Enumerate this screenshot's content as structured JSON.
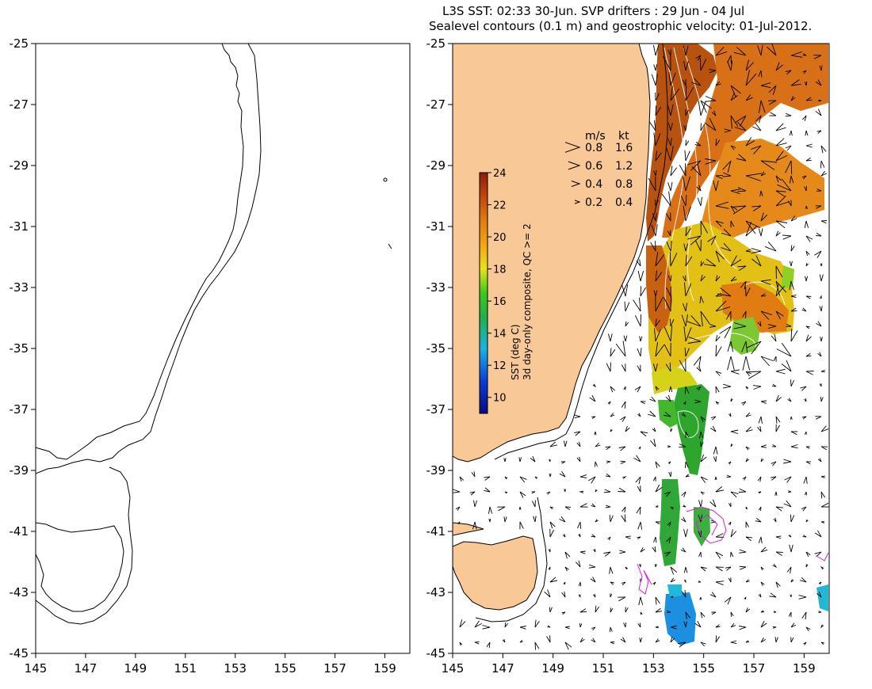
{
  "title": {
    "line1": "L3S SST: 02:33 30-Jun. SVP drifters : 29 Jun - 04 Jul",
    "line2": "Sealevel contours (0.1 m) and geostrophic velocity: 01-Jul-2012."
  },
  "axes": {
    "x_ticks": [
      "145",
      "147",
      "149",
      "151",
      "153",
      "155",
      "157",
      "159"
    ],
    "y_ticks": [
      "-25",
      "-27",
      "-29",
      "-31",
      "-33",
      "-35",
      "-37",
      "-39",
      "-41",
      "-43",
      "-45"
    ],
    "x_range": [
      145,
      160
    ],
    "y_range": [
      -45,
      -25
    ]
  },
  "velocity_legend": {
    "header_ms": "m/s",
    "header_kt": "kt",
    "rows": [
      {
        "ms": "0.8",
        "kt": "1.6"
      },
      {
        "ms": "0.6",
        "kt": "1.2"
      },
      {
        "ms": "0.4",
        "kt": "0.8"
      },
      {
        "ms": "0.2",
        "kt": "0.4"
      }
    ]
  },
  "colorbar": {
    "ticks": [
      "24",
      "22",
      "20",
      "18",
      "16",
      "14",
      "12",
      "10"
    ],
    "label1": "SST (deg C)",
    "label2": "3d day-only composite, QC >= 2",
    "range": [
      9,
      24
    ]
  },
  "colors": {
    "land": "#f8c896",
    "coast": "#000000",
    "drifter": "#d81fd8",
    "arrow": "#000000"
  }
}
